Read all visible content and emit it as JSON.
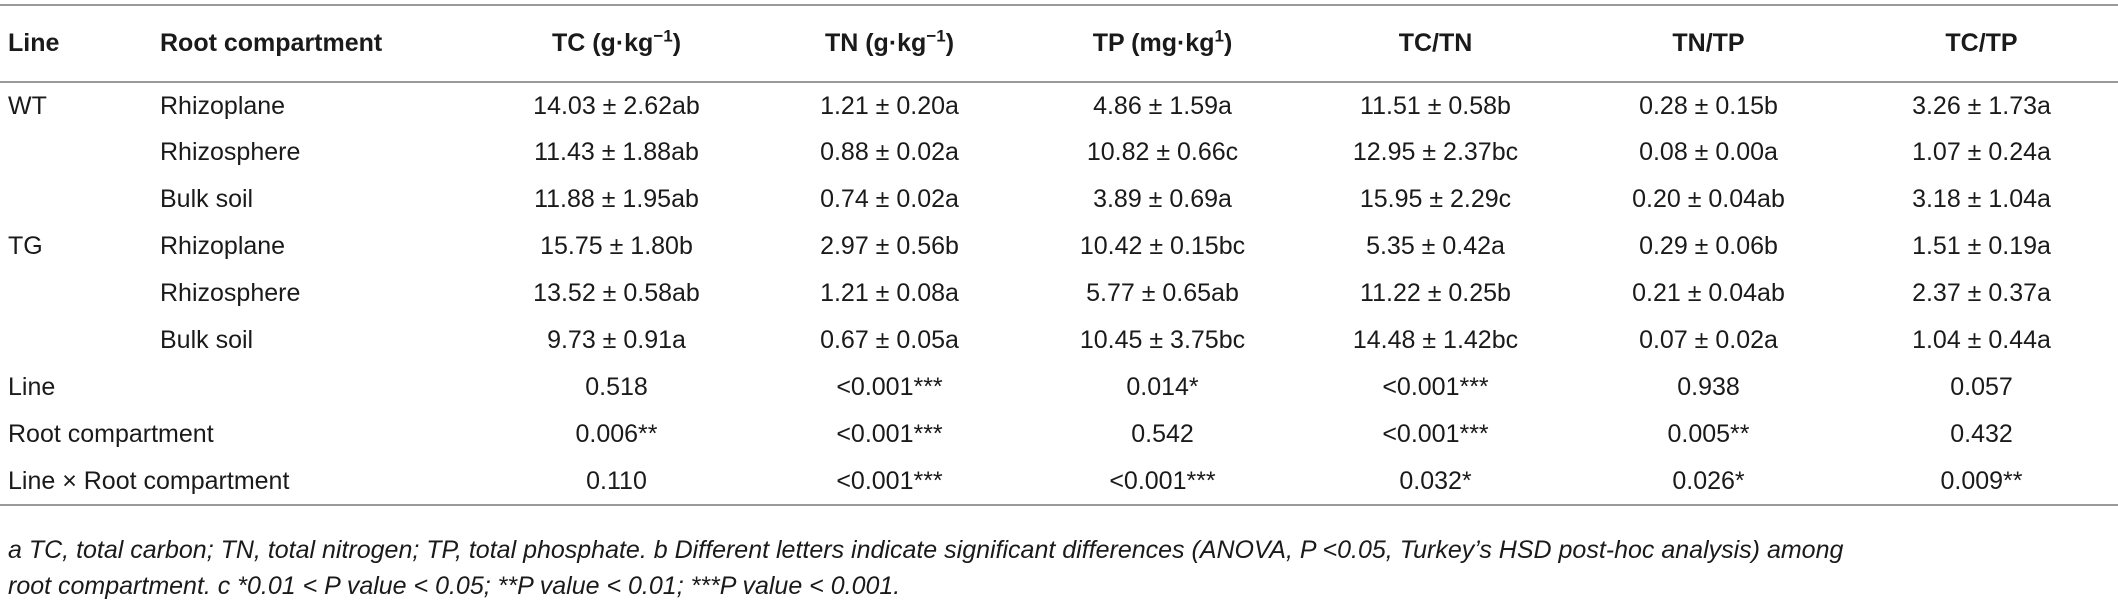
{
  "table": {
    "headers": {
      "line": "Line",
      "compartment": "Root compartment",
      "tc": "TC (g·kg",
      "tc_sup": "−1",
      "tc_end": ")",
      "tn": "TN (g·kg",
      "tn_sup": "−1",
      "tn_end": ")",
      "tp": "TP (mg·kg",
      "tp_sup": "1",
      "tp_end": ")",
      "tctn": "TC/TN",
      "tntp": "TN/TP",
      "tctp": "TC/TP"
    },
    "rows": [
      {
        "line": "WT",
        "compartment": "Rhizoplane",
        "tc": "14.03 ± 2.62ab",
        "tn": "1.21 ± 0.20a",
        "tp": "4.86 ± 1.59a",
        "tctn": "11.51 ± 0.58b",
        "tntp": "0.28 ± 0.15b",
        "tctp": "3.26 ± 1.73a"
      },
      {
        "line": "",
        "compartment": "Rhizosphere",
        "tc": "11.43 ± 1.88ab",
        "tn": "0.88 ± 0.02a",
        "tp": "10.82 ± 0.66c",
        "tctn": "12.95 ± 2.37bc",
        "tntp": "0.08 ± 0.00a",
        "tctp": "1.07 ± 0.24a"
      },
      {
        "line": "",
        "compartment": "Bulk soil",
        "tc": "11.88 ± 1.95ab",
        "tn": "0.74 ± 0.02a",
        "tp": "3.89 ± 0.69a",
        "tctn": "15.95 ± 2.29c",
        "tntp": "0.20 ± 0.04ab",
        "tctp": "3.18 ± 1.04a"
      },
      {
        "line": "TG",
        "compartment": "Rhizoplane",
        "tc": "15.75 ± 1.80b",
        "tn": "2.97 ± 0.56b",
        "tp": "10.42 ± 0.15bc",
        "tctn": "5.35 ± 0.42a",
        "tntp": "0.29 ± 0.06b",
        "tctp": "1.51 ± 0.19a"
      },
      {
        "line": "",
        "compartment": "Rhizosphere",
        "tc": "13.52 ± 0.58ab",
        "tn": "1.21 ± 0.08a",
        "tp": "5.77 ± 0.65ab",
        "tctn": "11.22 ± 0.25b",
        "tntp": "0.21 ± 0.04ab",
        "tctp": "2.37 ± 0.37a"
      },
      {
        "line": "",
        "compartment": "Bulk soil",
        "tc": "9.73 ± 0.91a",
        "tn": "0.67 ± 0.05a",
        "tp": "10.45 ± 3.75bc",
        "tctn": "14.48 ± 1.42bc",
        "tntp": "0.07 ± 0.02a",
        "tctp": "1.04 ± 0.44a"
      }
    ],
    "stats": [
      {
        "label": "Line",
        "tc": "0.518",
        "tn": "<0.001***",
        "tp": "0.014*",
        "tctn": "<0.001***",
        "tntp": "0.938",
        "tctp": "0.057"
      },
      {
        "label": "Root compartment",
        "tc": "0.006**",
        "tn": "<0.001***",
        "tp": "0.542",
        "tctn": "<0.001***",
        "tntp": "0.005**",
        "tctp": "0.432"
      },
      {
        "label": "Line × Root compartment",
        "tc": "0.110",
        "tn": "<0.001***",
        "tp": "<0.001***",
        "tctn": "0.032*",
        "tntp": "0.026*",
        "tctp": "0.009**"
      }
    ]
  },
  "footnote": {
    "line1": "a TC, total carbon; TN, total nitrogen; TP, total phosphate. b Different letters indicate significant differences (ANOVA, P <0.05, Turkey’s HSD post-hoc analysis) among",
    "line2": "root compartment. c *0.01 < P value < 0.05; **P value < 0.01; ***P value < 0.001."
  }
}
